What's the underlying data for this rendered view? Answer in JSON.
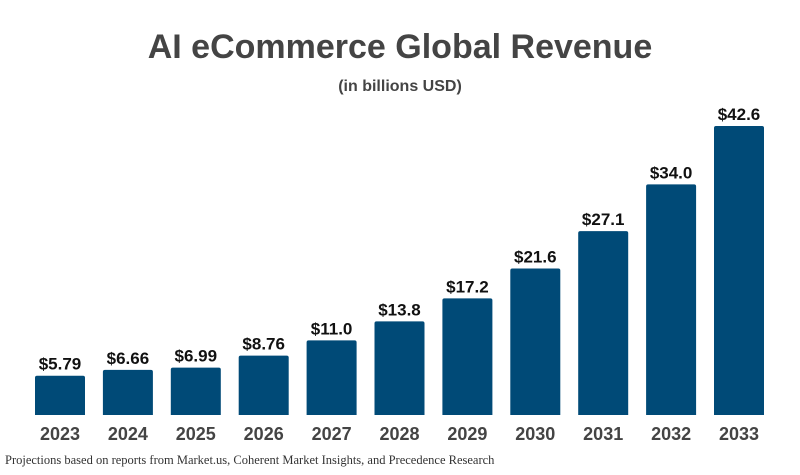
{
  "chart_data": {
    "type": "bar",
    "title": "AI eCommerce Global Revenue",
    "subtitle": "(in billions USD)",
    "categories": [
      "2023",
      "2024",
      "2025",
      "2026",
      "2027",
      "2028",
      "2029",
      "2030",
      "2031",
      "2032",
      "2033"
    ],
    "values": [
      5.79,
      6.66,
      6.99,
      8.76,
      11.0,
      13.8,
      17.2,
      21.6,
      27.1,
      34.0,
      42.6
    ],
    "data_labels": [
      "$5.79",
      "$6.66",
      "$6.99",
      "$8.76",
      "$11.0",
      "$13.8",
      "$17.2",
      "$21.6",
      "$27.1",
      "$34.0",
      "$42.6"
    ],
    "xlabel": "",
    "ylabel": "",
    "ylim": [
      0,
      42.6
    ],
    "grid": false,
    "bar_color": "#004a77",
    "footnote": "Projections based on reports from Market.us, Coherent Market Insights, and Precedence Research"
  }
}
